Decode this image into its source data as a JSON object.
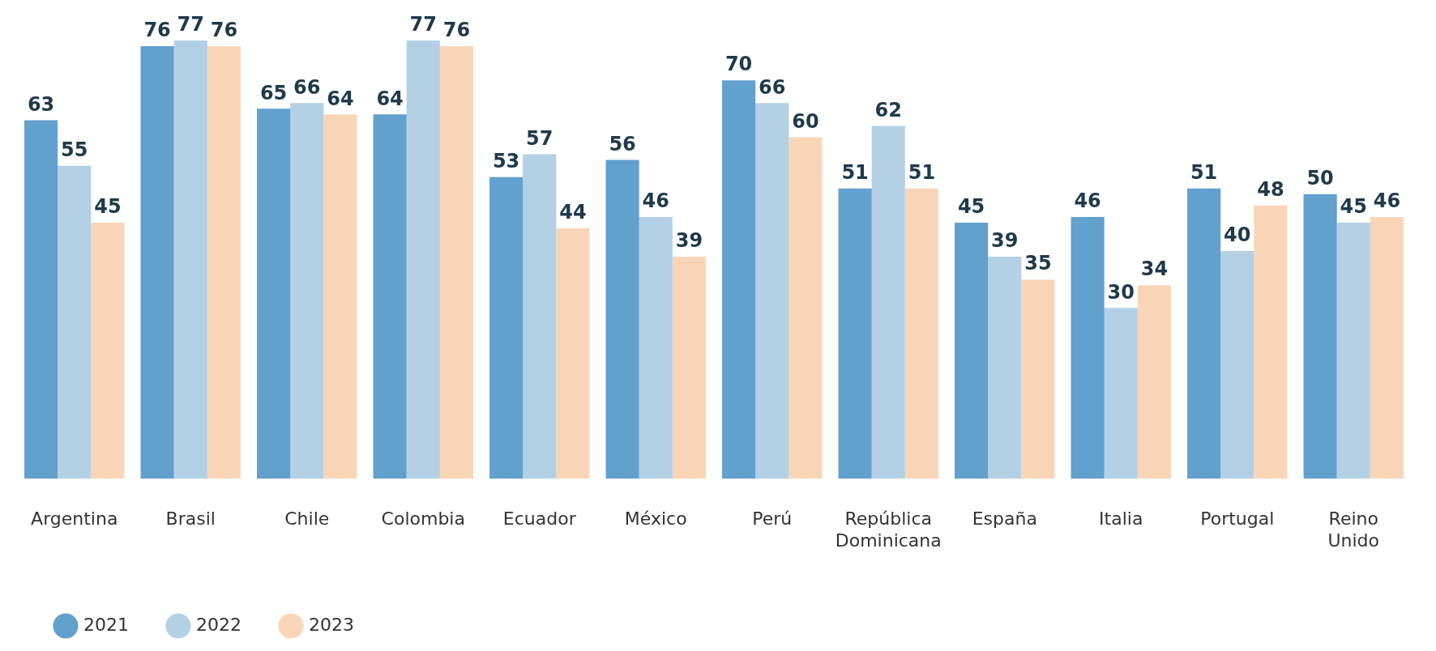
{
  "chart_data": {
    "type": "bar",
    "categories": [
      "Argentina",
      "Brasil",
      "Chile",
      "Colombia",
      "Ecuador",
      "México",
      "Perú",
      "República Dominicana",
      "España",
      "Italia",
      "Portugal",
      "Reino Unido"
    ],
    "series": [
      {
        "name": "2021",
        "color": "#62a0cd",
        "values": [
          63,
          76,
          65,
          64,
          53,
          56,
          70,
          51,
          45,
          46,
          51,
          50
        ]
      },
      {
        "name": "2022",
        "color": "#b3d0e5",
        "values": [
          55,
          77,
          66,
          77,
          57,
          46,
          66,
          62,
          39,
          30,
          40,
          45
        ]
      },
      {
        "name": "2023",
        "color": "#f9d5b8",
        "values": [
          45,
          76,
          64,
          76,
          44,
          39,
          60,
          51,
          35,
          34,
          48,
          46
        ]
      }
    ],
    "data_labels": true,
    "legend": "bottom left"
  }
}
